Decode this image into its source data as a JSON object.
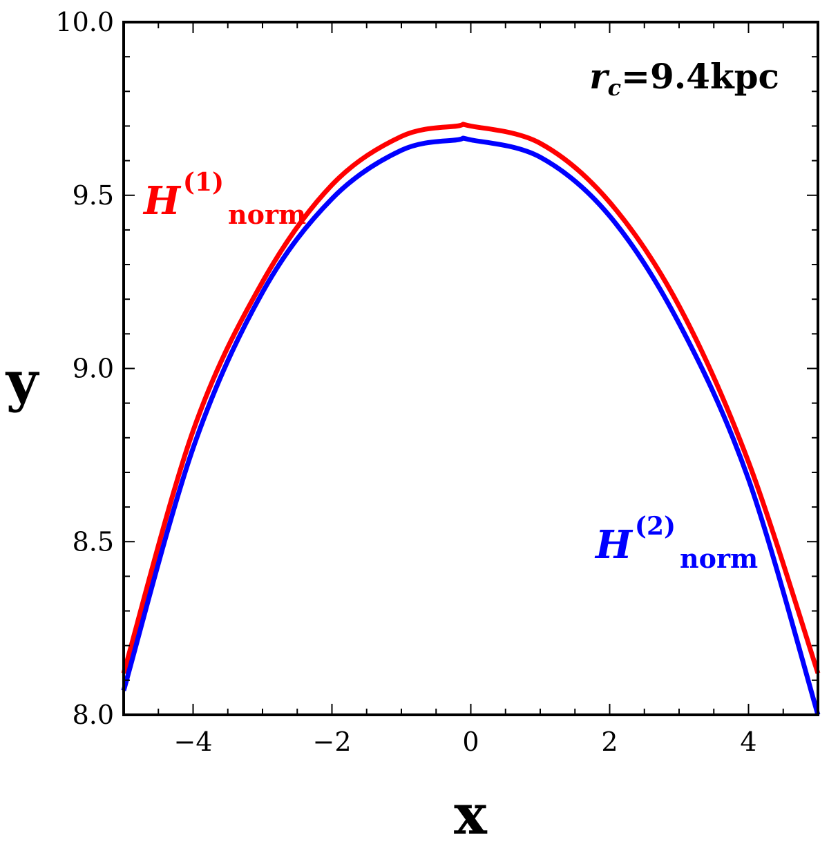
{
  "chart_data": {
    "type": "line",
    "xlabel": "x",
    "ylabel": "y",
    "xlim": [
      -5,
      5
    ],
    "ylim": [
      8.0,
      10.0
    ],
    "x_ticks": [
      -4,
      -2,
      0,
      2,
      4
    ],
    "x_tick_labels": [
      "−4",
      "−2",
      "0",
      "2",
      "4"
    ],
    "y_ticks": [
      8.0,
      8.5,
      9.0,
      9.5,
      10.0
    ],
    "y_tick_labels": [
      "8.0",
      "8.5",
      "9.0",
      "9.5",
      "10.0"
    ],
    "grid": false,
    "annotation": {
      "base": "r",
      "subscript": "c",
      "text": "=9.4kpc"
    },
    "series": [
      {
        "label_base": "H",
        "label_sup": "(1)",
        "label_sub": "norm",
        "color": "#ff0000",
        "x": [
          -5,
          -4,
          -3,
          -2,
          -1,
          -0.2,
          0,
          1,
          2,
          3,
          4,
          5
        ],
        "y": [
          8.12,
          8.82,
          9.25,
          9.53,
          9.67,
          9.7,
          9.7,
          9.65,
          9.48,
          9.18,
          8.73,
          8.12
        ]
      },
      {
        "label_base": "H",
        "label_sup": "(2)",
        "label_sub": "norm",
        "color": "#0000ff",
        "x": [
          -5,
          -4,
          -3,
          -2,
          -1,
          -0.2,
          0,
          1,
          2,
          3,
          4,
          5
        ],
        "y": [
          8.07,
          8.77,
          9.22,
          9.49,
          9.63,
          9.66,
          9.66,
          9.61,
          9.44,
          9.13,
          8.68,
          8.0
        ]
      }
    ]
  }
}
